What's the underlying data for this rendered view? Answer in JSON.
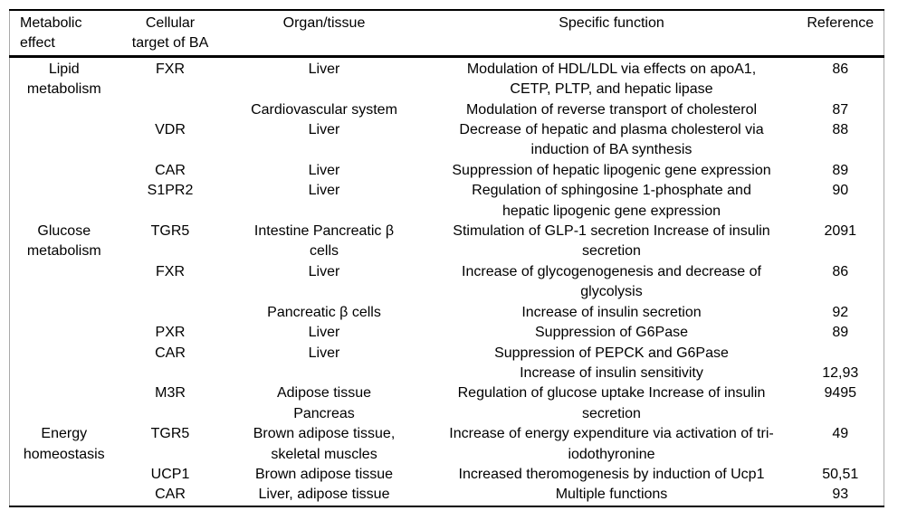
{
  "table": {
    "columns": [
      "Metabolic\neffect",
      "Cellular\ntarget of BA",
      "Organ/tissue",
      "Specific function",
      "Reference"
    ],
    "rows": [
      {
        "effect": "Lipid\nmetabolism",
        "target": "FXR",
        "organ": "Liver",
        "function": "Modulation of HDL/LDL via effects on apoA1,\nCETP, PLTP, and hepatic lipase",
        "reference": "86"
      },
      {
        "effect": "",
        "target": "",
        "organ": "Cardiovascular system",
        "function": "Modulation of reverse transport of cholesterol",
        "reference": "87"
      },
      {
        "effect": "",
        "target": "VDR",
        "organ": "Liver",
        "function": "Decrease of hepatic and plasma cholesterol via\ninduction of BA synthesis",
        "reference": "88"
      },
      {
        "effect": "",
        "target": "CAR",
        "organ": "Liver",
        "function": "Suppression of hepatic lipogenic gene expression",
        "reference": "89"
      },
      {
        "effect": "",
        "target": "S1PR2",
        "organ": "Liver",
        "function": "Regulation of sphingosine 1-phosphate and\nhepatic lipogenic gene expression",
        "reference": "90"
      },
      {
        "effect": "Glucose\nmetabolism",
        "target": "TGR5",
        "organ": "Intestine Pancreatic β\ncells",
        "function": "Stimulation of GLP-1 secretion Increase of insulin\nsecretion",
        "reference": "2091"
      },
      {
        "effect": "",
        "target": "FXR",
        "organ": "Liver",
        "function": "Increase of glycogenogenesis and decrease of\nglycolysis",
        "reference": "86"
      },
      {
        "effect": "",
        "target": "",
        "organ": "Pancreatic β cells",
        "function": "Increase of insulin secretion",
        "reference": "92"
      },
      {
        "effect": "",
        "target": "PXR",
        "organ": "Liver",
        "function": "Suppression of G6Pase",
        "reference": "89"
      },
      {
        "effect": "",
        "target": "CAR",
        "organ": "Liver",
        "function": "Suppression of PEPCK and G6Pase",
        "reference": ""
      },
      {
        "effect": "",
        "target": "",
        "organ": "",
        "function": "Increase of insulin sensitivity",
        "reference": "12,93"
      },
      {
        "effect": "",
        "target": "M3R",
        "organ": "Adipose tissue\nPancreas",
        "function": "Regulation of glucose uptake Increase of insulin\nsecretion",
        "reference": "9495"
      },
      {
        "effect": "Energy\nhomeostasis",
        "target": "TGR5",
        "organ": "Brown adipose tissue,\nskeletal muscles",
        "function": "Increase of energy expenditure via activation of tri-\niodothyronine",
        "reference": "49"
      },
      {
        "effect": "",
        "target": "UCP1",
        "organ": "Brown adipose tissue",
        "function": "Increased theromogenesis by induction of Ucp1",
        "reference": "50,51"
      },
      {
        "effect": "",
        "target": "CAR",
        "organ": "Liver, adipose tissue",
        "function": "Multiple functions",
        "reference": "93"
      }
    ]
  }
}
